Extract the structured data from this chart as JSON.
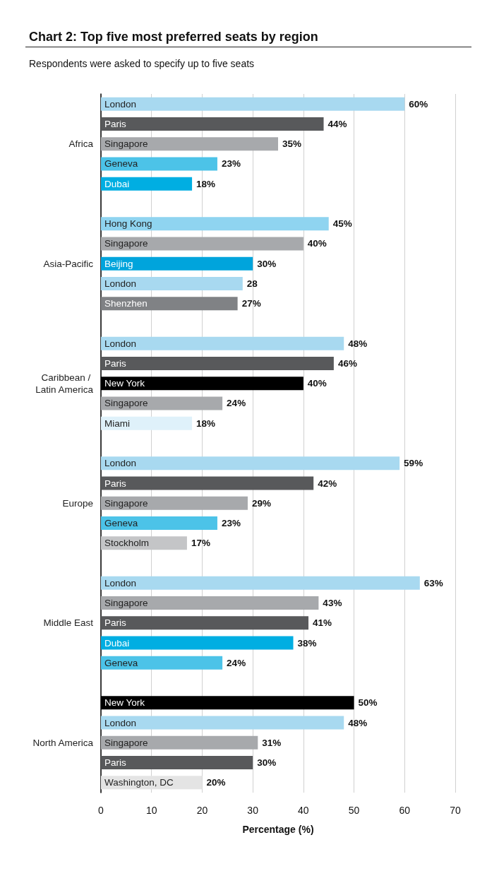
{
  "chart_data": {
    "type": "bar",
    "orientation": "horizontal",
    "title": "Chart 2: Top five most preferred seats by region",
    "subtitle": "Respondents were asked to specify up to five seats",
    "xlabel": "Percentage (%)",
    "categories": [
      "London",
      "Paris",
      "Singapore",
      "Geneva",
      "Dubai",
      null,
      "Hong Kong",
      "Singapore",
      "Beijing",
      "London",
      "Shenzhen",
      null,
      "London",
      "Paris",
      "New York",
      "Singapore",
      "Miami",
      null,
      "London",
      "Paris",
      "Singapore",
      "Geneva",
      "Stockholm",
      null,
      "London",
      "Singapore",
      "Paris",
      "Dubai",
      "Geneva",
      null,
      "New York",
      "London",
      "Singapore",
      "Paris",
      "Washington, DC"
    ],
    "values": [
      60,
      44,
      35,
      23,
      18,
      null,
      45,
      40,
      30,
      28,
      27,
      null,
      48,
      46,
      40,
      24,
      18,
      null,
      59,
      42,
      29,
      23,
      17,
      null,
      63,
      43,
      41,
      38,
      24,
      null,
      50,
      48,
      31,
      30,
      20
    ],
    "value_labels": [
      "60%",
      "44%",
      "35%",
      "23%",
      "18%",
      null,
      "45%",
      "40%",
      "30%",
      "28",
      "27%",
      null,
      "48%",
      "46%",
      "40%",
      "24%",
      "18%",
      null,
      "59%",
      "42%",
      "29%",
      "23%",
      "17%",
      null,
      "63%",
      "43%",
      "41%",
      "38%",
      "24%",
      null,
      "50%",
      "48%",
      "31%",
      "30%",
      "20%"
    ],
    "colors": [
      "#a8d9f0",
      "#58595b",
      "#a7a9ac",
      "#4cc3e8",
      "#00aee2",
      null,
      "#8fd4f0",
      "#a7a9ac",
      "#00a4dc",
      "#a8d9f0",
      "#808285",
      null,
      "#a8d9f0",
      "#58595b",
      "#000000",
      "#a7a9ac",
      "#dff1fa",
      null,
      "#a8d9f0",
      "#58595b",
      "#a7a9ac",
      "#4cc3e8",
      "#c4c5c7",
      null,
      "#a8d9f0",
      "#a7a9ac",
      "#58595b",
      "#00aee2",
      "#4cc3e8",
      null,
      "#000000",
      "#a8d9f0",
      "#a7a9ac",
      "#58595b",
      "#e4e4e4"
    ],
    "annotations": [
      "Africa",
      "Asia-Pacific",
      "Caribbean / Latin America",
      "Europe",
      "Middle East",
      "North America"
    ],
    "xlim": [
      0,
      70
    ],
    "xticks": [
      0,
      10,
      20,
      30,
      40,
      50,
      60,
      70
    ],
    "grid": "x"
  }
}
